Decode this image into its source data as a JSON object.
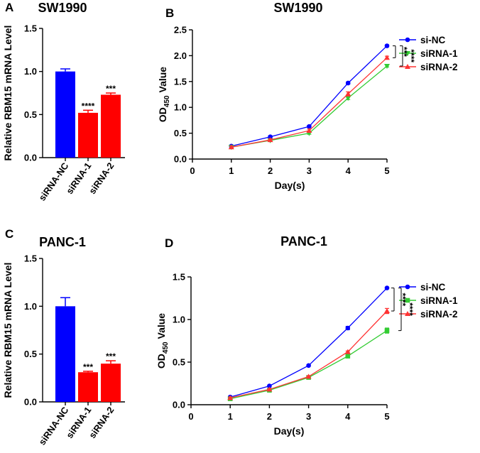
{
  "colors": {
    "blue": "#0000ff",
    "red": "#ff0000",
    "green": "#33cc33",
    "lineRed": "#ff3333"
  },
  "chart_data": [
    {
      "panel": "A",
      "type": "bar",
      "title": "SW1990",
      "ylabel": "Relative RBM15 mRNA Level",
      "xlabel": "",
      "ylim": [
        0,
        1.5
      ],
      "yticks": [
        "0.0",
        "0.5",
        "1.0",
        "1.5"
      ],
      "categories": [
        "siRNA-NC",
        "siRNA-1",
        "siRNA-2"
      ],
      "values": [
        1.0,
        0.52,
        0.73
      ],
      "errors": [
        0.03,
        0.03,
        0.02
      ],
      "annotations": [
        "",
        "****",
        "***"
      ],
      "bar_colors": [
        "blue",
        "red",
        "red"
      ]
    },
    {
      "panel": "B",
      "type": "line",
      "title": "SW1990",
      "ylabel_main": "OD",
      "ylabel_sub": "450",
      "ylabel_tail": " Value",
      "xlabel": "Day(s)",
      "ylim": [
        0,
        2.5
      ],
      "yticks": [
        "0.0",
        "0.5",
        "1.0",
        "1.5",
        "2.0",
        "2.5"
      ],
      "xlim": [
        0,
        5
      ],
      "xticks": [
        "0",
        "1",
        "2",
        "3",
        "4",
        "5"
      ],
      "x": [
        1,
        2,
        3,
        4,
        5
      ],
      "series": [
        {
          "name": "si-NC",
          "values": [
            0.25,
            0.43,
            0.63,
            1.47,
            2.19
          ],
          "errors": [
            0.02,
            0.02,
            0.02,
            0.02,
            0.02
          ],
          "color": "blue",
          "marker": "circle"
        },
        {
          "name": "siRNA-1",
          "values": [
            0.23,
            0.36,
            0.5,
            1.18,
            1.8
          ],
          "errors": [
            0.02,
            0.02,
            0.02,
            0.03,
            0.02
          ],
          "color": "green",
          "marker": "triangle-down"
        },
        {
          "name": "siRNA-2",
          "values": [
            0.23,
            0.37,
            0.55,
            1.26,
            1.96
          ],
          "errors": [
            0.02,
            0.02,
            0.03,
            0.04,
            0.03
          ],
          "color": "lineRed",
          "marker": "triangle-up"
        }
      ],
      "significance": [
        {
          "label": "***",
          "from": 2.19,
          "to": 1.96
        },
        {
          "label": "****",
          "from": 2.19,
          "to": 1.8
        }
      ]
    },
    {
      "panel": "C",
      "type": "bar",
      "title": "PANC-1",
      "ylabel": "Relative RBM15 mRNA Level",
      "xlabel": "",
      "ylim": [
        0,
        1.5
      ],
      "yticks": [
        "0.0",
        "0.5",
        "1.0",
        "1.5"
      ],
      "categories": [
        "siRNA-NC",
        "siRNA-1",
        "siRNA-2"
      ],
      "values": [
        1.0,
        0.31,
        0.4
      ],
      "errors": [
        0.09,
        0.01,
        0.03
      ],
      "annotations": [
        "",
        "***",
        "***"
      ],
      "bar_colors": [
        "blue",
        "red",
        "red"
      ]
    },
    {
      "panel": "D",
      "type": "line",
      "title": "PANC-1",
      "ylabel_main": "OD",
      "ylabel_sub": "450",
      "ylabel_tail": " Value",
      "xlabel": "Day(s)",
      "ylim": [
        0,
        1.5
      ],
      "yticks": [
        "0.0",
        "0.5",
        "1.0",
        "1.5"
      ],
      "xlim": [
        0,
        5
      ],
      "xticks": [
        "0",
        "1",
        "2",
        "3",
        "4",
        "5"
      ],
      "x": [
        1,
        2,
        3,
        4,
        5
      ],
      "series": [
        {
          "name": "si-NC",
          "values": [
            0.09,
            0.22,
            0.46,
            0.9,
            1.37
          ],
          "errors": [
            0.01,
            0.01,
            0.01,
            0.02,
            0.01
          ],
          "color": "blue",
          "marker": "circle"
        },
        {
          "name": "siRNA-1",
          "values": [
            0.07,
            0.17,
            0.32,
            0.57,
            0.87
          ],
          "errors": [
            0.01,
            0.01,
            0.01,
            0.01,
            0.03
          ],
          "color": "green",
          "marker": "square"
        },
        {
          "name": "siRNA-2",
          "values": [
            0.08,
            0.18,
            0.33,
            0.62,
            1.1
          ],
          "errors": [
            0.01,
            0.01,
            0.01,
            0.01,
            0.03
          ],
          "color": "lineRed",
          "marker": "triangle-up"
        }
      ],
      "significance": [
        {
          "label": "****",
          "from": 1.37,
          "to": 1.1
        },
        {
          "label": "****",
          "from": 1.37,
          "to": 0.87
        }
      ]
    }
  ]
}
